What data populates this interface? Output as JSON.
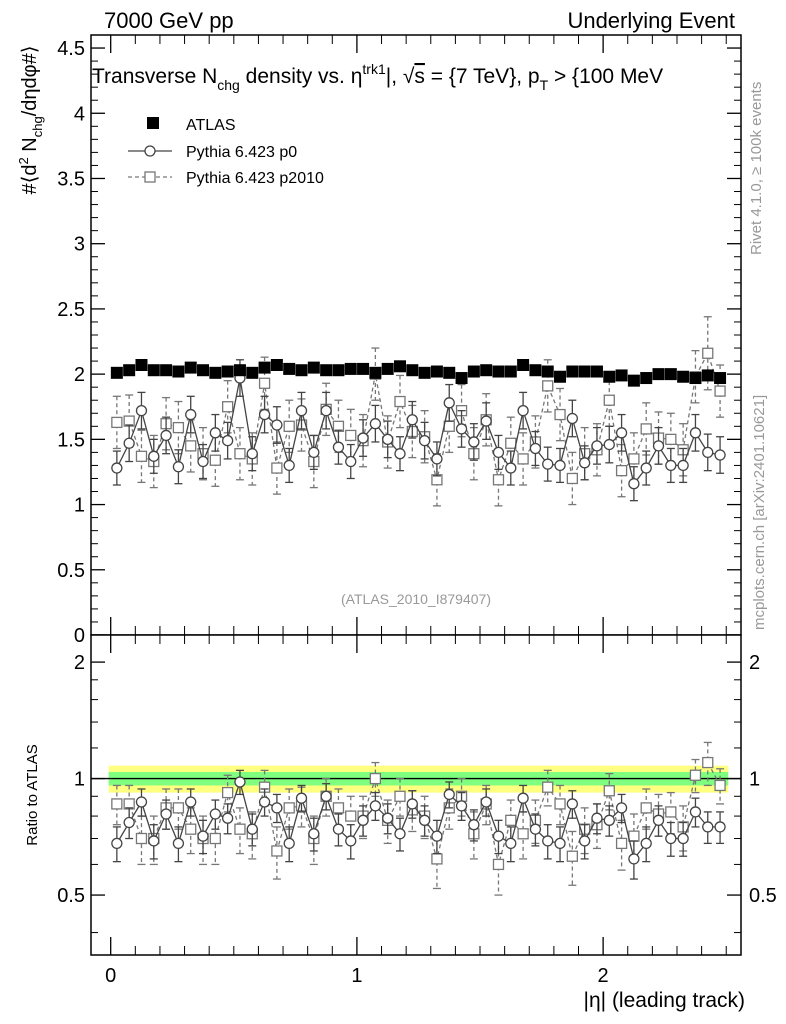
{
  "header": {
    "left": "7000 GeV pp",
    "right": "Underlying Event"
  },
  "side_labels": {
    "rivet": "Rivet 4.1.0, ≥ 100k events",
    "mcplots": "mcplots.cern.ch [arXiv:2401.10621]"
  },
  "analysis_tag": "(ATLAS_2010_I879407)",
  "colors": {
    "data": "#000000",
    "p0": "#444444",
    "p2010": "#777777",
    "band_inner": "#7fff7f",
    "band_outer": "#ffff80",
    "side_text": "#999999"
  },
  "chart_data": [
    {
      "id": "main",
      "type": "scatter",
      "title": "Transverse N_chg density vs. η^trk1|, √s = {7 TeV}, p_T > {100 MeV}",
      "title_parts": {
        "t1": "Transverse N",
        "t1_sub": "chg",
        "t2": " density vs. ",
        "t2_eta": "η",
        "t2_sup": "trk1",
        "t3": "|, ",
        "t3_sqrt": "√",
        "t3_s": "s",
        "t4": " = {7 TeV}, p",
        "t4_sub": "T",
        "t5": " > {100 MeV"
      },
      "ylabel": "#⟨d² N_chg/dηdφ#⟩",
      "ylabel_parts": {
        "a": "#⟨d",
        "a_sup": "2",
        "b": " N",
        "b_sub": "chg",
        "c": "/dηdφ#⟩"
      },
      "xlim": [
        -0.08,
        2.56
      ],
      "ylim": [
        0,
        4.6
      ],
      "yticks": [
        {
          "v": 0,
          "label": "0"
        },
        {
          "v": 0.5,
          "label": "0.5"
        },
        {
          "v": 1,
          "label": "1"
        },
        {
          "v": 1.5,
          "label": "1.5"
        },
        {
          "v": 2,
          "label": "2"
        },
        {
          "v": 2.5,
          "label": "2.5"
        },
        {
          "v": 3,
          "label": "3"
        },
        {
          "v": 3.5,
          "label": "3.5"
        },
        {
          "v": 4,
          "label": "4"
        },
        {
          "v": 4.5,
          "label": "4.5"
        }
      ],
      "legend": [
        {
          "key": "atlas",
          "label": "ATLAS"
        },
        {
          "key": "p0",
          "label": "Pythia 6.423 p0"
        },
        {
          "key": "p2010",
          "label": "Pythia 6.423 p2010"
        }
      ],
      "x": [
        0.025,
        0.075,
        0.125,
        0.175,
        0.225,
        0.275,
        0.325,
        0.375,
        0.425,
        0.475,
        0.525,
        0.575,
        0.625,
        0.675,
        0.725,
        0.775,
        0.825,
        0.875,
        0.925,
        0.975,
        1.025,
        1.075,
        1.125,
        1.175,
        1.225,
        1.275,
        1.325,
        1.375,
        1.425,
        1.475,
        1.525,
        1.575,
        1.625,
        1.675,
        1.725,
        1.775,
        1.825,
        1.875,
        1.925,
        1.975,
        2.025,
        2.075,
        2.125,
        2.175,
        2.225,
        2.275,
        2.325,
        2.375,
        2.425,
        2.475
      ],
      "series": [
        {
          "name": "ATLAS",
          "key": "atlas",
          "values": [
            2.01,
            2.03,
            2.07,
            2.03,
            2.03,
            2.02,
            2.05,
            2.03,
            2.01,
            2.02,
            2.03,
            2.01,
            2.05,
            2.07,
            2.04,
            2.03,
            2.05,
            2.03,
            2.03,
            2.04,
            2.04,
            2.01,
            2.04,
            2.06,
            2.03,
            2.01,
            2.02,
            2.01,
            1.97,
            2.02,
            2.03,
            2.02,
            2.02,
            2.07,
            2.03,
            2.02,
            1.98,
            2.02,
            2.02,
            2.02,
            1.98,
            1.99,
            1.95,
            1.97,
            2.0,
            2.0,
            1.98,
            1.97,
            1.99,
            1.97
          ],
          "errors": [
            0.015,
            0.015,
            0.015,
            0.015,
            0.015,
            0.015,
            0.015,
            0.015,
            0.015,
            0.015,
            0.015,
            0.015,
            0.015,
            0.015,
            0.015,
            0.015,
            0.015,
            0.015,
            0.015,
            0.015,
            0.015,
            0.015,
            0.015,
            0.015,
            0.015,
            0.015,
            0.015,
            0.015,
            0.015,
            0.015,
            0.015,
            0.015,
            0.015,
            0.015,
            0.015,
            0.015,
            0.015,
            0.015,
            0.015,
            0.015,
            0.015,
            0.015,
            0.015,
            0.015,
            0.015,
            0.015,
            0.015,
            0.015,
            0.015,
            0.015
          ]
        },
        {
          "name": "Pythia 6.423 p0",
          "key": "p0",
          "values": [
            1.28,
            1.47,
            1.72,
            1.37,
            1.53,
            1.29,
            1.69,
            1.33,
            1.55,
            1.49,
            1.97,
            1.39,
            1.69,
            1.61,
            1.3,
            1.72,
            1.4,
            1.72,
            1.44,
            1.33,
            1.51,
            1.62,
            1.5,
            1.39,
            1.65,
            1.49,
            1.35,
            1.78,
            1.58,
            1.48,
            1.64,
            1.4,
            1.28,
            1.72,
            1.43,
            1.31,
            1.3,
            1.66,
            1.32,
            1.45,
            1.46,
            1.55,
            1.16,
            1.28,
            1.45,
            1.3,
            1.3,
            1.55,
            1.4,
            1.38
          ],
          "errors": [
            0.13,
            0.14,
            0.14,
            0.13,
            0.14,
            0.13,
            0.14,
            0.13,
            0.14,
            0.14,
            0.14,
            0.13,
            0.14,
            0.14,
            0.13,
            0.14,
            0.13,
            0.14,
            0.13,
            0.13,
            0.14,
            0.14,
            0.14,
            0.13,
            0.14,
            0.14,
            0.13,
            0.14,
            0.14,
            0.14,
            0.14,
            0.13,
            0.13,
            0.14,
            0.13,
            0.13,
            0.13,
            0.14,
            0.13,
            0.14,
            0.14,
            0.14,
            0.13,
            0.13,
            0.14,
            0.13,
            0.13,
            0.14,
            0.14,
            0.14
          ]
        },
        {
          "name": "Pythia 6.423 p2010",
          "key": "p2010",
          "values": [
            1.63,
            1.64,
            1.37,
            1.33,
            1.62,
            1.59,
            1.45,
            1.39,
            1.34,
            1.75,
            1.39,
            1.35,
            1.93,
            1.28,
            1.6,
            1.61,
            1.33,
            1.73,
            1.6,
            1.53,
            1.49,
            2.0,
            1.48,
            1.79,
            1.56,
            1.52,
            1.19,
            1.6,
            1.72,
            1.39,
            1.65,
            1.19,
            1.47,
            1.35,
            1.48,
            1.91,
            1.69,
            1.2,
            1.39,
            1.42,
            1.8,
            1.26,
            1.35,
            1.58,
            1.51,
            1.5,
            1.42,
            1.98,
            2.16,
            1.87
          ],
          "errors": [
            0.2,
            0.2,
            0.2,
            0.2,
            0.2,
            0.2,
            0.2,
            0.2,
            0.2,
            0.2,
            0.2,
            0.2,
            0.2,
            0.2,
            0.2,
            0.2,
            0.2,
            0.2,
            0.2,
            0.2,
            0.2,
            0.2,
            0.2,
            0.2,
            0.2,
            0.2,
            0.2,
            0.2,
            0.2,
            0.2,
            0.2,
            0.2,
            0.2,
            0.2,
            0.2,
            0.2,
            0.2,
            0.2,
            0.2,
            0.2,
            0.2,
            0.2,
            0.2,
            0.2,
            0.2,
            0.2,
            0.2,
            0.2,
            0.28,
            0.2
          ]
        }
      ]
    },
    {
      "id": "ratio",
      "type": "scatter",
      "ylabel": "Ratio to ATLAS",
      "xlabel": "|η| (leading track)",
      "ylim": [
        0.35,
        2.35
      ],
      "yscale": "log",
      "yticks": [
        {
          "v": 0.5,
          "label": "0.5"
        },
        {
          "v": 1,
          "label": "1"
        },
        {
          "v": 2,
          "label": "2"
        }
      ],
      "xticks": [
        {
          "v": 0,
          "label": "0"
        },
        {
          "v": 1,
          "label": "1"
        },
        {
          "v": 2,
          "label": "2"
        }
      ],
      "band_inner_halfwidth": 0.04,
      "band_outer_halfwidth": 0.08,
      "series": [
        {
          "name": "Pythia 6.423 p0",
          "key": "p0",
          "values": [
            0.68,
            0.77,
            0.87,
            0.69,
            0.81,
            0.68,
            0.87,
            0.71,
            0.81,
            0.79,
            0.98,
            0.74,
            0.87,
            0.84,
            0.68,
            0.89,
            0.72,
            0.9,
            0.74,
            0.69,
            0.78,
            0.85,
            0.79,
            0.72,
            0.86,
            0.78,
            0.71,
            0.91,
            0.85,
            0.76,
            0.87,
            0.71,
            0.68,
            0.89,
            0.74,
            0.69,
            0.68,
            0.86,
            0.69,
            0.79,
            0.78,
            0.84,
            0.62,
            0.68,
            0.78,
            0.7,
            0.7,
            0.82,
            0.75,
            0.75
          ],
          "errors": [
            0.07,
            0.07,
            0.07,
            0.07,
            0.07,
            0.07,
            0.07,
            0.07,
            0.07,
            0.07,
            0.07,
            0.07,
            0.07,
            0.07,
            0.07,
            0.07,
            0.07,
            0.07,
            0.07,
            0.07,
            0.07,
            0.07,
            0.07,
            0.07,
            0.07,
            0.07,
            0.07,
            0.07,
            0.07,
            0.07,
            0.07,
            0.07,
            0.07,
            0.07,
            0.07,
            0.07,
            0.07,
            0.07,
            0.07,
            0.07,
            0.07,
            0.07,
            0.07,
            0.07,
            0.07,
            0.07,
            0.07,
            0.07,
            0.07,
            0.07
          ]
        },
        {
          "name": "Pythia 6.423 p2010",
          "key": "p2010",
          "values": [
            0.86,
            0.86,
            0.7,
            0.7,
            0.84,
            0.84,
            0.74,
            0.7,
            0.7,
            0.92,
            0.74,
            0.72,
            0.95,
            0.65,
            0.84,
            0.85,
            0.7,
            0.9,
            0.84,
            0.8,
            0.8,
            1.0,
            0.78,
            0.9,
            0.83,
            0.8,
            0.62,
            0.84,
            0.9,
            0.72,
            0.86,
            0.6,
            0.78,
            0.72,
            0.78,
            0.95,
            0.86,
            0.63,
            0.74,
            0.76,
            0.93,
            0.68,
            0.71,
            0.84,
            0.81,
            0.82,
            0.75,
            1.02,
            1.1,
            0.96
          ],
          "errors": [
            0.1,
            0.1,
            0.1,
            0.1,
            0.1,
            0.1,
            0.1,
            0.1,
            0.1,
            0.1,
            0.1,
            0.1,
            0.1,
            0.1,
            0.1,
            0.1,
            0.1,
            0.1,
            0.1,
            0.1,
            0.1,
            0.1,
            0.1,
            0.1,
            0.1,
            0.1,
            0.1,
            0.1,
            0.1,
            0.1,
            0.1,
            0.1,
            0.1,
            0.1,
            0.1,
            0.1,
            0.1,
            0.1,
            0.1,
            0.1,
            0.1,
            0.1,
            0.1,
            0.1,
            0.1,
            0.1,
            0.1,
            0.1,
            0.14,
            0.1
          ]
        }
      ]
    }
  ]
}
